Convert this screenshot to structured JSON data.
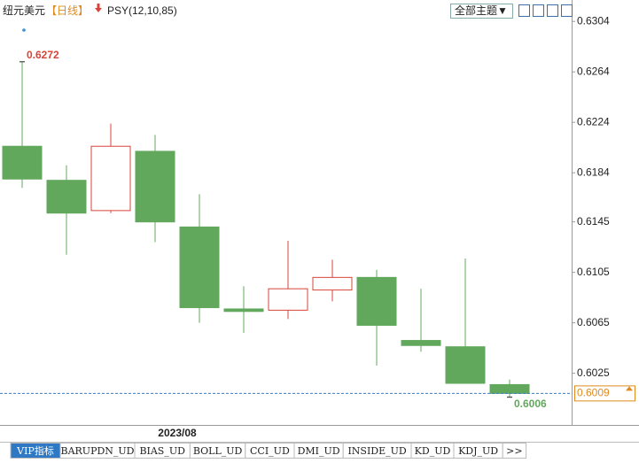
{
  "header": {
    "symbol": "纽元美元",
    "period": "【日线】",
    "indicator": "PSY(12,10,85)",
    "theme_button": "全部主题▼"
  },
  "tabs": [
    "VIP指标",
    "BARUPDN_UD",
    "BIAS_UD",
    "BOLL_UD",
    "CCI_UD",
    "DMI_UD",
    "INSIDE_UD",
    "KD_UD",
    "KDJ_UD",
    ">>"
  ],
  "chart_data": {
    "type": "candlestick",
    "x_label": "2023/08",
    "open": [
      0.6205,
      0.6178,
      0.6154,
      0.6201,
      0.6141,
      0.6076,
      0.6075,
      0.6091,
      0.6101,
      0.6051,
      0.6046,
      0.6016
    ],
    "high": [
      0.6272,
      0.619,
      0.6223,
      0.6214,
      0.6167,
      0.6094,
      0.613,
      0.6115,
      0.6107,
      0.6092,
      0.6116,
      0.602
    ],
    "low": [
      0.6172,
      0.6119,
      0.6152,
      0.6129,
      0.6065,
      0.6057,
      0.6068,
      0.6082,
      0.6031,
      0.6042,
      0.6017,
      0.6006
    ],
    "close": [
      0.6179,
      0.6152,
      0.6205,
      0.6145,
      0.6077,
      0.6074,
      0.6092,
      0.6101,
      0.6063,
      0.6047,
      0.6017,
      0.6009
    ],
    "up_color": "#d9443a",
    "down_color": "#62a85c",
    "ylim": [
      0.5984,
      0.6321
    ],
    "yticks": [
      0.6025,
      0.6065,
      0.6105,
      0.6145,
      0.6184,
      0.6224,
      0.6264,
      0.6304
    ]
  }
}
